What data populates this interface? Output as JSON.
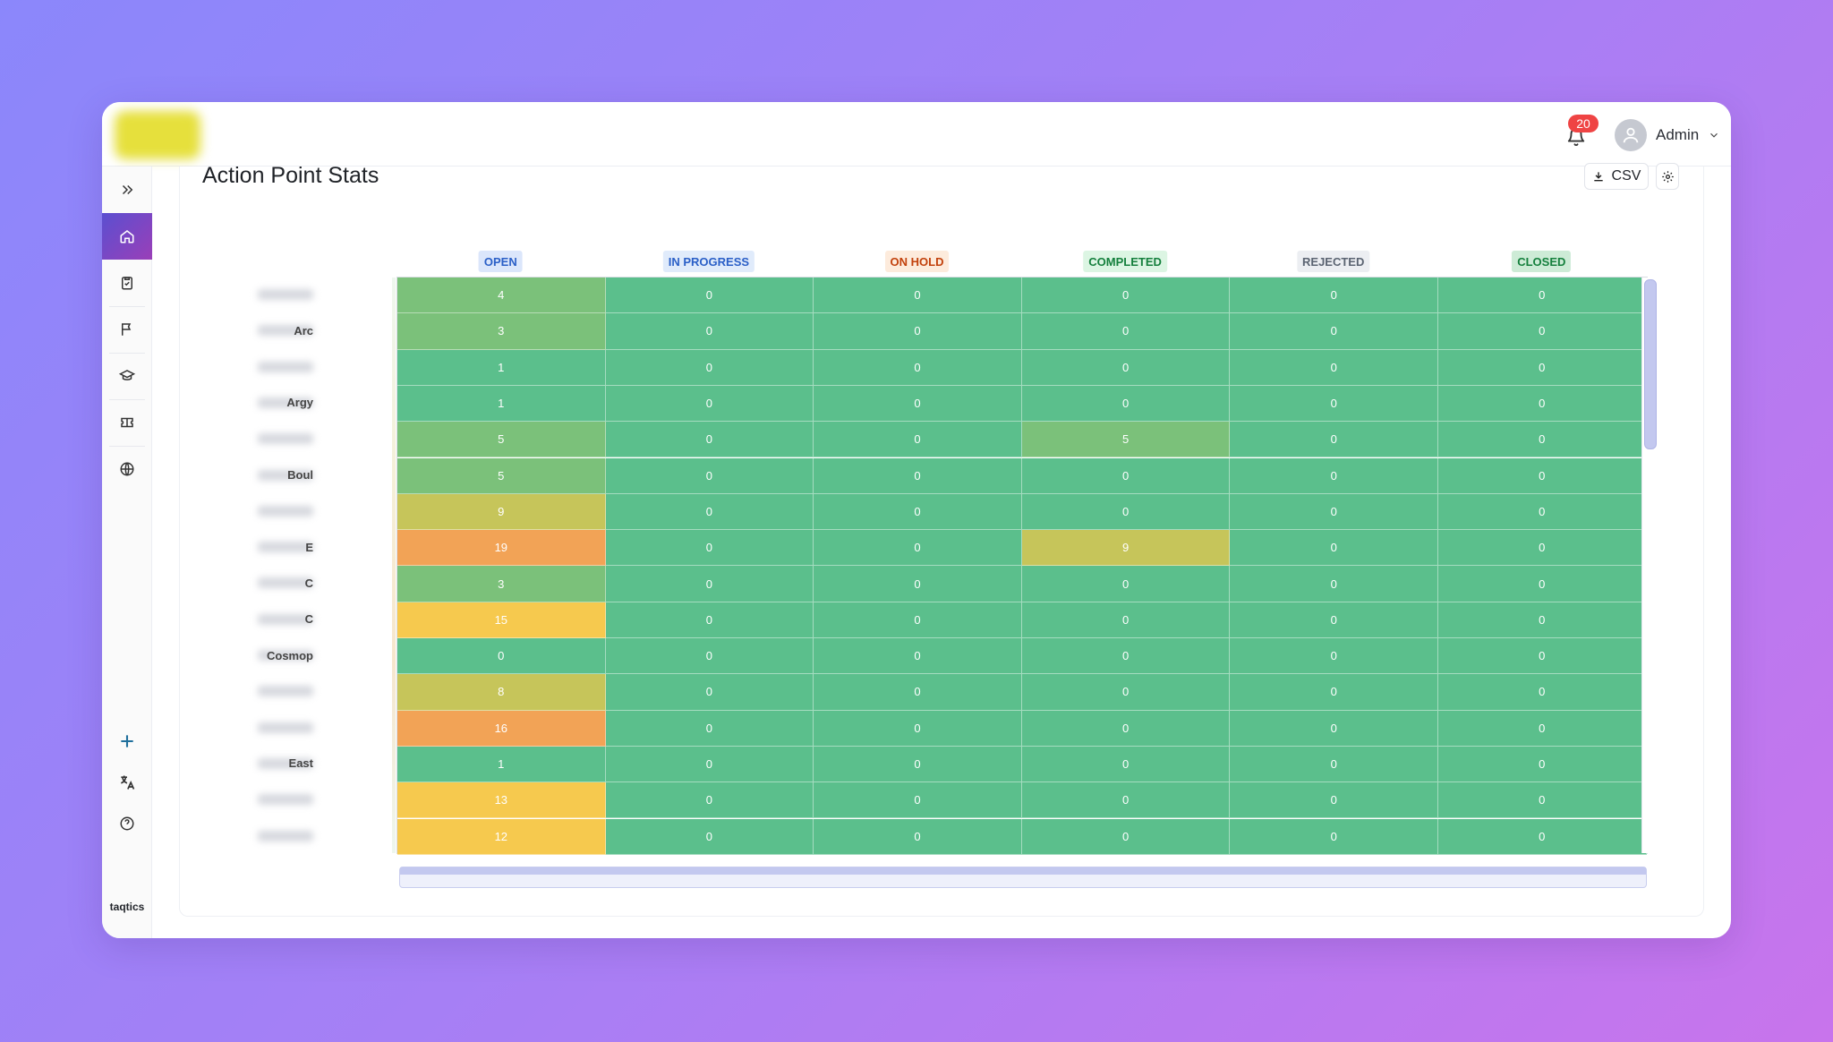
{
  "header": {
    "notification_count": "20",
    "user_name": "Admin"
  },
  "sidebar": {
    "items": [
      {
        "icon": "double-chevron-right-icon"
      },
      {
        "icon": "home-icon",
        "active": true
      },
      {
        "icon": "clipboard-check-icon"
      },
      {
        "icon": "flag-icon"
      },
      {
        "icon": "graduation-cap-icon"
      },
      {
        "icon": "ticket-icon"
      },
      {
        "icon": "globe-icon"
      }
    ],
    "bottom_items": [
      {
        "icon": "plus-icon"
      },
      {
        "icon": "translate-icon"
      },
      {
        "icon": "help-icon"
      }
    ],
    "brand": "taqtics"
  },
  "page": {
    "title": "Action Point Stats",
    "csv_label": "CSV"
  },
  "chart_data": {
    "type": "heatmap",
    "columns": [
      {
        "label": "OPEN",
        "text_color": "#2a5fc7",
        "bg": "#dbe6fb"
      },
      {
        "label": "IN PROGRESS",
        "text_color": "#2a5fc7",
        "bg": "#e0ebfb"
      },
      {
        "label": "ON HOLD",
        "text_color": "#c2410c",
        "bg": "#fdebdc"
      },
      {
        "label": "COMPLETED",
        "text_color": "#15803d",
        "bg": "#dcf5e3"
      },
      {
        "label": "REJECTED",
        "text_color": "#5b6472",
        "bg": "#eceef2"
      },
      {
        "label": "CLOSED",
        "text_color": "#15803d",
        "bg": "#cdebd6"
      }
    ],
    "row_labels": [
      "",
      "Arc",
      "",
      "Argy",
      "",
      "Boul",
      "",
      "E",
      "C",
      "C",
      "Cosmop",
      "",
      "",
      "East",
      "",
      ""
    ],
    "values": [
      [
        4,
        0,
        0,
        0,
        0,
        0
      ],
      [
        3,
        0,
        0,
        0,
        0,
        0
      ],
      [
        1,
        0,
        0,
        0,
        0,
        0
      ],
      [
        1,
        0,
        0,
        0,
        0,
        0
      ],
      [
        5,
        0,
        0,
        5,
        0,
        0
      ],
      [
        5,
        0,
        0,
        0,
        0,
        0
      ],
      [
        9,
        0,
        0,
        0,
        0,
        0
      ],
      [
        19,
        0,
        0,
        9,
        0,
        0
      ],
      [
        3,
        0,
        0,
        0,
        0,
        0
      ],
      [
        15,
        0,
        0,
        0,
        0,
        0
      ],
      [
        0,
        0,
        0,
        0,
        0,
        0
      ],
      [
        8,
        0,
        0,
        0,
        0,
        0
      ],
      [
        16,
        0,
        0,
        0,
        0,
        0
      ],
      [
        1,
        0,
        0,
        0,
        0,
        0
      ],
      [
        13,
        0,
        0,
        0,
        0,
        0
      ],
      [
        12,
        0,
        0,
        0,
        0,
        0
      ]
    ],
    "color_scale": [
      "#5bbf8c",
      "#7bc17a",
      "#c6c55a",
      "#f6c94e",
      "#f2a356"
    ]
  }
}
